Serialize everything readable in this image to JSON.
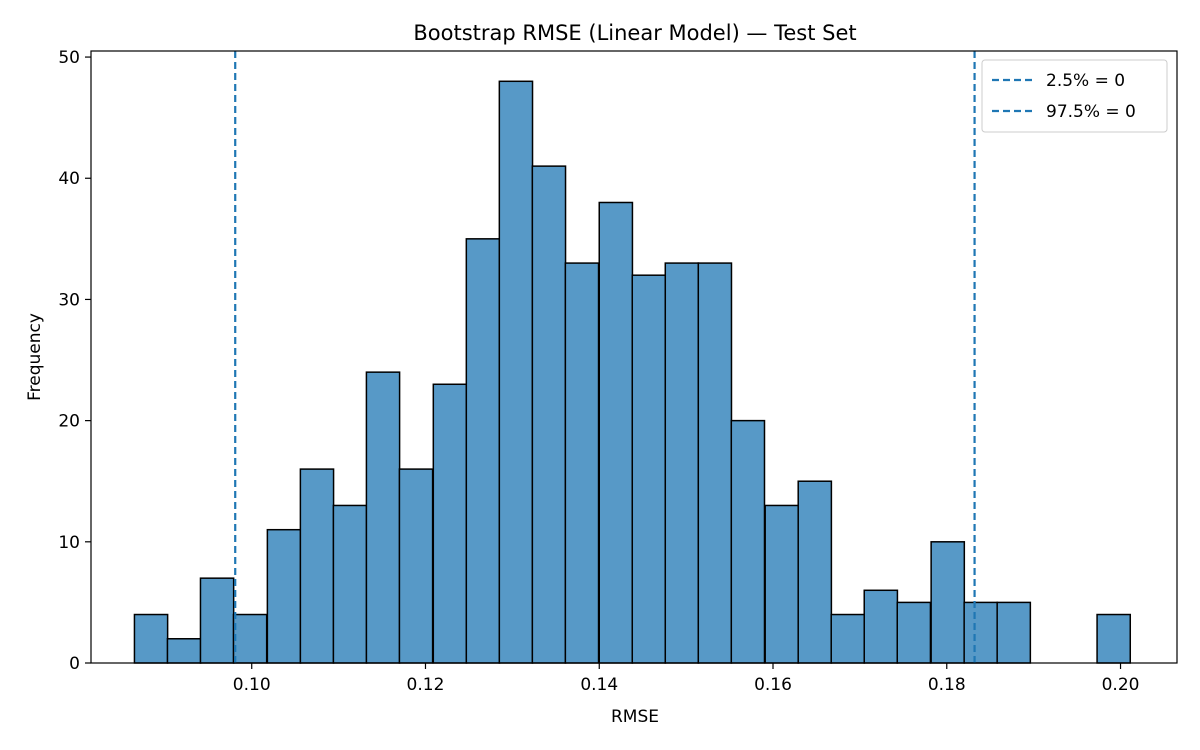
{
  "chart_data": {
    "type": "bar",
    "title": "Bootstrap RMSE (Linear Model) — Test Set",
    "xlabel": "RMSE",
    "ylabel": "Frequency",
    "xlim": [
      0.0815,
      0.2065
    ],
    "ylim": [
      0,
      50.5
    ],
    "grid": false,
    "bin_width": 0.00382,
    "x_ticks": [
      0.1,
      0.12,
      0.14,
      0.16,
      0.18,
      0.2
    ],
    "x_tick_labels": [
      "0.10",
      "0.12",
      "0.14",
      "0.16",
      "0.18",
      "0.20"
    ],
    "y_ticks": [
      0,
      10,
      20,
      30,
      40,
      50
    ],
    "y_tick_labels": [
      "0",
      "10",
      "20",
      "30",
      "40",
      "50"
    ],
    "bins": [
      {
        "start": 0.0865,
        "count": 4
      },
      {
        "start": 0.0903,
        "count": 2
      },
      {
        "start": 0.0941,
        "count": 7
      },
      {
        "start": 0.0979,
        "count": 4
      },
      {
        "start": 0.1018,
        "count": 11
      },
      {
        "start": 0.1056,
        "count": 16
      },
      {
        "start": 0.1094,
        "count": 13
      },
      {
        "start": 0.1132,
        "count": 24
      },
      {
        "start": 0.117,
        "count": 16
      },
      {
        "start": 0.1209,
        "count": 23
      },
      {
        "start": 0.1247,
        "count": 35
      },
      {
        "start": 0.1285,
        "count": 48
      },
      {
        "start": 0.1323,
        "count": 41
      },
      {
        "start": 0.1361,
        "count": 33
      },
      {
        "start": 0.14,
        "count": 38
      },
      {
        "start": 0.1438,
        "count": 32
      },
      {
        "start": 0.1476,
        "count": 33
      },
      {
        "start": 0.1514,
        "count": 33
      },
      {
        "start": 0.1552,
        "count": 20
      },
      {
        "start": 0.1591,
        "count": 13
      },
      {
        "start": 0.1629,
        "count": 15
      },
      {
        "start": 0.1667,
        "count": 4
      },
      {
        "start": 0.1705,
        "count": 6
      },
      {
        "start": 0.1743,
        "count": 5
      },
      {
        "start": 0.1782,
        "count": 10
      },
      {
        "start": 0.182,
        "count": 5
      },
      {
        "start": 0.1858,
        "count": 5
      },
      {
        "start": 0.1896,
        "count": 0
      },
      {
        "start": 0.1934,
        "count": 0
      },
      {
        "start": 0.1973,
        "count": 4
      }
    ],
    "bar_color": "#5799c7",
    "bar_edge_color": "#000000",
    "vlines": [
      {
        "x": 0.0981,
        "label": "2.5% = 0",
        "color": "#1f77b4",
        "style": "dashed"
      },
      {
        "x": 0.1832,
        "label": "97.5% = 0",
        "color": "#1f77b4",
        "style": "dashed"
      }
    ],
    "legend_position": "top-right"
  }
}
